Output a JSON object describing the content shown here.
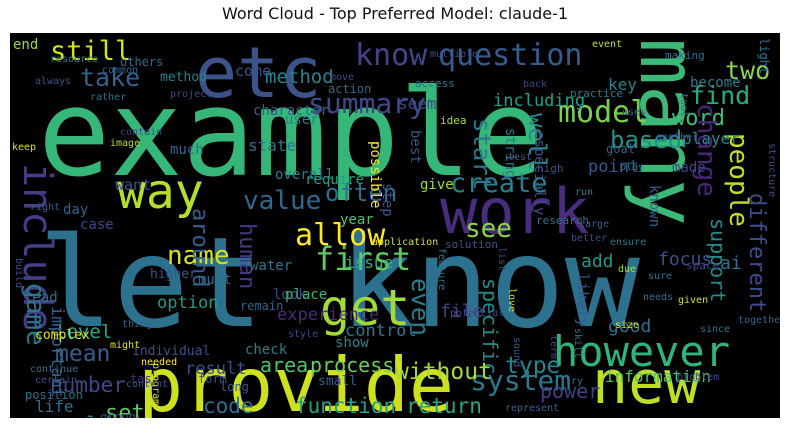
{
  "title": "Word Cloud - Top Preferred Model: claude-1",
  "words": [
    {
      "text": "example",
      "color": "#35b779"
    },
    {
      "text": "let know",
      "color": "#2c728e"
    },
    {
      "text": "provide",
      "color": "#cde11d"
    },
    {
      "text": "etc",
      "color": "#3b528b"
    },
    {
      "text": "many",
      "color": "#3aba76"
    },
    {
      "text": "way",
      "color": "#b5de2b"
    },
    {
      "text": "work",
      "color": "#472d7b"
    },
    {
      "text": "new",
      "color": "#bddf26"
    },
    {
      "text": "however",
      "color": "#2fb47c"
    },
    {
      "text": "know",
      "color": "#404688"
    },
    {
      "text": "question",
      "color": "#365c8d"
    },
    {
      "text": "get",
      "color": "#a2da37"
    },
    {
      "text": "include",
      "color": "#433e85"
    },
    {
      "text": "first",
      "color": "#5ec962"
    },
    {
      "text": "allow",
      "color": "#fde725"
    },
    {
      "text": "model",
      "color": "#7ad151"
    },
    {
      "text": "summary",
      "color": "#3e4989"
    },
    {
      "text": "system",
      "color": "#2a788e"
    },
    {
      "text": "create",
      "color": "#26828e"
    },
    {
      "text": "value",
      "color": "#31688e"
    },
    {
      "text": "function",
      "color": "#20a386"
    },
    {
      "text": "return",
      "color": "#22a884"
    },
    {
      "text": "code",
      "color": "#2d708e"
    },
    {
      "text": "still",
      "color": "#d2e21b"
    },
    {
      "text": "take",
      "color": "#34618d"
    },
    {
      "text": "find",
      "color": "#25ac82"
    },
    {
      "text": "two",
      "color": "#89d548"
    },
    {
      "text": "word",
      "color": "#3dbc74"
    },
    {
      "text": "based",
      "color": "#21918c"
    },
    {
      "text": "see",
      "color": "#8bd646"
    },
    {
      "text": "people",
      "color": "#c0df25"
    },
    {
      "text": "change",
      "color": "#482677"
    },
    {
      "text": "support",
      "color": "#228c8d"
    },
    {
      "text": "different",
      "color": "#3e4c8a"
    },
    {
      "text": "name",
      "color": "#d8e219"
    },
    {
      "text": "human",
      "color": "#443a83"
    },
    {
      "text": "around",
      "color": "#355f8d"
    },
    {
      "text": "often",
      "color": "#2e6e8e"
    },
    {
      "text": "well",
      "color": "#23898e"
    },
    {
      "text": "start",
      "color": "#2a778e"
    },
    {
      "text": "even",
      "color": "#277f8e"
    },
    {
      "text": "game",
      "color": "#29798e"
    },
    {
      "text": "mean",
      "color": "#355e8d"
    },
    {
      "text": "number",
      "color": "#3f4788"
    },
    {
      "text": "set",
      "color": "#5cc863"
    },
    {
      "text": "life",
      "color": "#2d718e"
    },
    {
      "text": "world",
      "color": "#2b758e"
    },
    {
      "text": "type",
      "color": "#24878e"
    },
    {
      "text": "specific",
      "color": "#228d8d"
    },
    {
      "text": "power",
      "color": "#423f85"
    },
    {
      "text": "without",
      "color": "#a5db36"
    },
    {
      "text": "area",
      "color": "#4cc26c"
    },
    {
      "text": "process",
      "color": "#6ccd5a"
    },
    {
      "text": "result",
      "color": "#3d4d8a"
    },
    {
      "text": "information",
      "color": "#4ac16d"
    },
    {
      "text": "good",
      "color": "#2d708e"
    },
    {
      "text": "file",
      "color": "#404588"
    },
    {
      "text": "add",
      "color": "#1f978b"
    },
    {
      "text": "focus",
      "color": "#3c508b"
    },
    {
      "text": "ai",
      "color": "#2c738e"
    },
    {
      "text": "known",
      "color": "#355f8d"
    },
    {
      "text": "likely",
      "color": "#39568c"
    },
    {
      "text": "issue",
      "color": "#32b67a"
    },
    {
      "text": "experience",
      "color": "#472c7a"
    },
    {
      "text": "control",
      "color": "#2a768e"
    },
    {
      "text": "option",
      "color": "#1f9a8a"
    },
    {
      "text": "level",
      "color": "#24aa83"
    },
    {
      "text": "lead",
      "color": "#2e6f8e"
    },
    {
      "text": "important",
      "color": "#34618d"
    },
    {
      "text": "method",
      "color": "#25848e"
    },
    {
      "text": "come",
      "color": "#3b528b"
    },
    {
      "text": "character",
      "color": "#33628d"
    },
    {
      "text": "user",
      "color": "#287c8e"
    },
    {
      "text": "including",
      "color": "#1fa088"
    },
    {
      "text": "seem",
      "color": "#3f4889"
    },
    {
      "text": "key",
      "color": "#27808e"
    },
    {
      "text": "become",
      "color": "#287d8e"
    },
    {
      "text": "player",
      "color": "#23888e"
    },
    {
      "text": "made",
      "color": "#414487"
    },
    {
      "text": "point",
      "color": "#3a548c"
    },
    {
      "text": "string",
      "color": "#2a788e"
    },
    {
      "text": "especially",
      "color": "#3b518b"
    },
    {
      "text": "best",
      "color": "#38588c"
    },
    {
      "text": "possible",
      "color": "#fde725"
    },
    {
      "text": "require",
      "color": "#1fa187"
    },
    {
      "text": "state",
      "color": "#2c718e"
    },
    {
      "text": "much",
      "color": "#31668e"
    },
    {
      "text": "want",
      "color": "#3b528b"
    },
    {
      "text": "overall",
      "color": "#287d8e"
    },
    {
      "text": "day",
      "color": "#34608d"
    },
    {
      "text": "case",
      "color": "#3f4788"
    },
    {
      "text": "give",
      "color": "#a0da39"
    },
    {
      "text": "year",
      "color": "#4ec36b"
    },
    {
      "text": "step",
      "color": "#39568c"
    },
    {
      "text": "must",
      "color": "#2f6b8e"
    },
    {
      "text": "water",
      "color": "#2a768e"
    },
    {
      "text": "show",
      "color": "#24868e"
    },
    {
      "text": "look",
      "color": "#3f4788"
    },
    {
      "text": "place",
      "color": "#35b779"
    },
    {
      "text": "check",
      "color": "#277f8e"
    },
    {
      "text": "small",
      "color": "#34618d"
    },
    {
      "text": "individual",
      "color": "#3c4f8a"
    },
    {
      "text": "complex",
      "color": "#dde318"
    },
    {
      "text": "continue",
      "color": "#2d718e"
    },
    {
      "text": "group",
      "color": "#3e4989"
    },
    {
      "text": "form",
      "color": "#3b528b"
    },
    {
      "text": "long",
      "color": "#37598c"
    },
    {
      "text": "task",
      "color": "#46337f"
    },
    {
      "text": "position",
      "color": "#2b748e"
    },
    {
      "text": "certain",
      "color": "#3d4e8a"
    },
    {
      "text": "higher",
      "color": "#3b528b"
    },
    {
      "text": "remain",
      "color": "#33638d"
    },
    {
      "text": "end",
      "color": "#90d743"
    },
    {
      "text": "others",
      "color": "#2f6c8e"
    },
    {
      "text": "method",
      "color": "#25848e"
    },
    {
      "text": "project",
      "color": "#3e4989"
    },
    {
      "text": "access",
      "color": "#2a788e"
    },
    {
      "text": "practice",
      "color": "#287c8e"
    },
    {
      "text": "idea",
      "color": "#aadc32"
    },
    {
      "text": "event",
      "color": "#bddf26"
    },
    {
      "text": "making",
      "color": "#2e6f8e"
    },
    {
      "text": "action",
      "color": "#31678e"
    },
    {
      "text": "move",
      "color": "#3e4a89"
    },
    {
      "text": "multiple",
      "color": "#3d4d8a"
    },
    {
      "text": "resource",
      "color": "#287d8e"
    },
    {
      "text": "common",
      "color": "#33638d"
    },
    {
      "text": "always",
      "color": "#3b528b"
    },
    {
      "text": "rather",
      "color": "#2d708e"
    },
    {
      "text": "contain",
      "color": "#3e4989"
    },
    {
      "text": "image",
      "color": "#b8de29"
    },
    {
      "text": "keep",
      "color": "#dae319"
    },
    {
      "text": "right",
      "color": "#34618d"
    },
    {
      "text": "build",
      "color": "#3d4e8a"
    },
    {
      "text": "light",
      "color": "#2b748e"
    },
    {
      "text": "structure",
      "color": "#3b518b"
    },
    {
      "text": "uses",
      "color": "#31688e"
    },
    {
      "text": "tool",
      "color": "#2a768e"
    },
    {
      "text": "back",
      "color": "#3f4788"
    },
    {
      "text": "run",
      "color": "#287c8e"
    },
    {
      "text": "high",
      "color": "#3d4e8a"
    },
    {
      "text": "test",
      "color": "#35608d"
    },
    {
      "text": "play",
      "color": "#277f8e"
    },
    {
      "text": "goal",
      "color": "#34618d"
    },
    {
      "text": "another",
      "color": "#3b528b"
    },
    {
      "text": "large",
      "color": "#34608d"
    },
    {
      "text": "research",
      "color": "#2c728e"
    },
    {
      "text": "better",
      "color": "#3e4a89"
    },
    {
      "text": "ensure",
      "color": "#29798e"
    },
    {
      "text": "space",
      "color": "#414487"
    },
    {
      "text": "solution",
      "color": "#3b528b"
    },
    {
      "text": "application",
      "color": "#dae319"
    },
    {
      "text": "feature",
      "color": "#2a778e"
    },
    {
      "text": "list",
      "color": "#3e4989"
    },
    {
      "text": "due",
      "color": "#a2da37"
    },
    {
      "text": "sure",
      "color": "#2c728e"
    },
    {
      "text": "needs",
      "color": "#2d708e"
    },
    {
      "text": "given",
      "color": "#d2e21b"
    },
    {
      "text": "together",
      "color": "#33638d"
    },
    {
      "text": "since",
      "color": "#2a768e"
    },
    {
      "text": "size",
      "color": "#dde318"
    },
    {
      "text": "skill",
      "color": "#2b748e"
    },
    {
      "text": "term",
      "color": "#3c4f8a"
    },
    {
      "text": "sound",
      "color": "#3b528b"
    },
    {
      "text": "love",
      "color": "#d2e21b"
    },
    {
      "text": "try",
      "color": "#2f6c8e"
    },
    {
      "text": "problem",
      "color": "#3d4d8a"
    },
    {
      "text": "represent",
      "color": "#31668e"
    },
    {
      "text": "style",
      "color": "#3e4989"
    },
    {
      "text": "might",
      "color": "#dde318"
    },
    {
      "text": "needed",
      "color": "#fde725"
    },
    {
      "text": "program",
      "color": "#dae319"
    },
    {
      "text": "content",
      "color": "#3b528b"
    },
    {
      "text": "thing",
      "color": "#33638d"
    },
    {
      "text": "potential",
      "color": "#3e4989"
    },
    {
      "text": "go",
      "color": "#2c728e"
    },
    {
      "text": "current",
      "color": "#dae319"
    },
    {
      "text": "team",
      "color": "#3e4989"
    }
  ]
}
